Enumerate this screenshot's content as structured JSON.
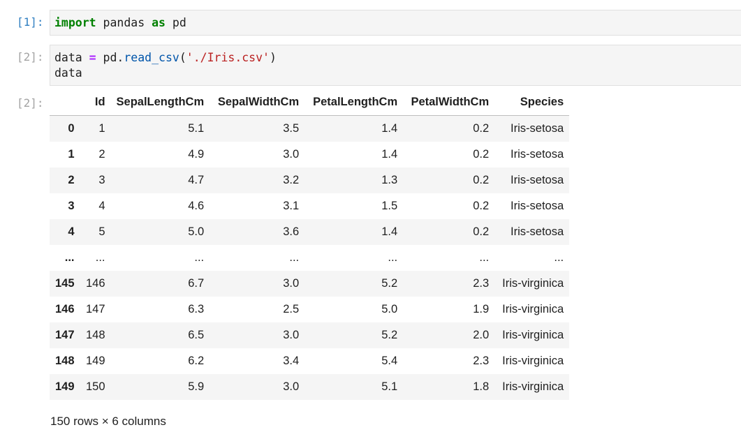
{
  "cells": [
    {
      "prompt": "[1]:",
      "code": {
        "kw1": "import",
        "mod": " pandas ",
        "kw2": "as",
        "alias": " pd"
      }
    },
    {
      "prompt": "[2]:",
      "code": {
        "var": "data ",
        "op": "=",
        "obj": " pd.",
        "fn": "read_csv",
        "open": "(",
        "str": "'./Iris.csv'",
        "close": ")",
        "line2": "data"
      }
    }
  ],
  "output": {
    "prompt": "[2]:",
    "columns": [
      "",
      "Id",
      "SepalLengthCm",
      "SepalWidthCm",
      "PetalLengthCm",
      "PetalWidthCm",
      "Species"
    ],
    "rows": [
      [
        "0",
        "1",
        "5.1",
        "3.5",
        "1.4",
        "0.2",
        "Iris-setosa"
      ],
      [
        "1",
        "2",
        "4.9",
        "3.0",
        "1.4",
        "0.2",
        "Iris-setosa"
      ],
      [
        "2",
        "3",
        "4.7",
        "3.2",
        "1.3",
        "0.2",
        "Iris-setosa"
      ],
      [
        "3",
        "4",
        "4.6",
        "3.1",
        "1.5",
        "0.2",
        "Iris-setosa"
      ],
      [
        "4",
        "5",
        "5.0",
        "3.6",
        "1.4",
        "0.2",
        "Iris-setosa"
      ],
      [
        "...",
        "...",
        "...",
        "...",
        "...",
        "...",
        "..."
      ],
      [
        "145",
        "146",
        "6.7",
        "3.0",
        "5.2",
        "2.3",
        "Iris-virginica"
      ],
      [
        "146",
        "147",
        "6.3",
        "2.5",
        "5.0",
        "1.9",
        "Iris-virginica"
      ],
      [
        "147",
        "148",
        "6.5",
        "3.0",
        "5.2",
        "2.0",
        "Iris-virginica"
      ],
      [
        "148",
        "149",
        "6.2",
        "3.4",
        "5.4",
        "2.3",
        "Iris-virginica"
      ],
      [
        "149",
        "150",
        "5.9",
        "3.0",
        "5.1",
        "1.8",
        "Iris-virginica"
      ]
    ],
    "summary": "150 rows × 6 columns"
  },
  "colors": {
    "active_prompt": "#307fc1",
    "idle_prompt": "#a3a3a3",
    "keyword": "#008000",
    "operator": "#aa22ff",
    "function": "#0055aa",
    "string": "#ba2121",
    "code_background": "#f5f5f5",
    "row_stripe": "#f5f5f5"
  }
}
